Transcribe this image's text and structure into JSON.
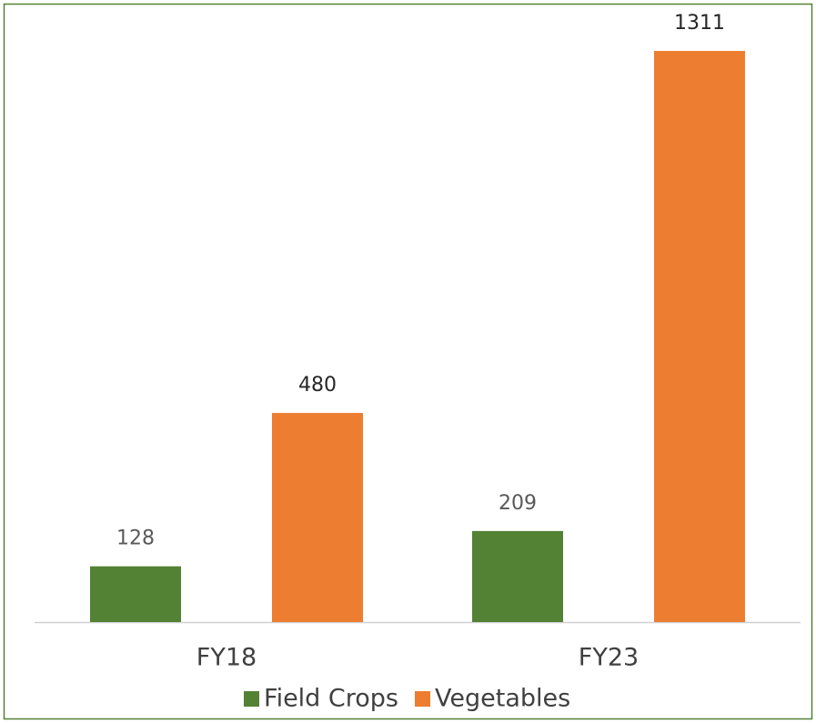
{
  "chart_data": {
    "type": "bar",
    "categories": [
      "FY18",
      "FY23"
    ],
    "series": [
      {
        "name": "Field Crops",
        "color": "#548235",
        "values": [
          128,
          209
        ]
      },
      {
        "name": "Vegetables",
        "color": "#ed7d31",
        "values": [
          480,
          1311
        ]
      }
    ]
  }
}
